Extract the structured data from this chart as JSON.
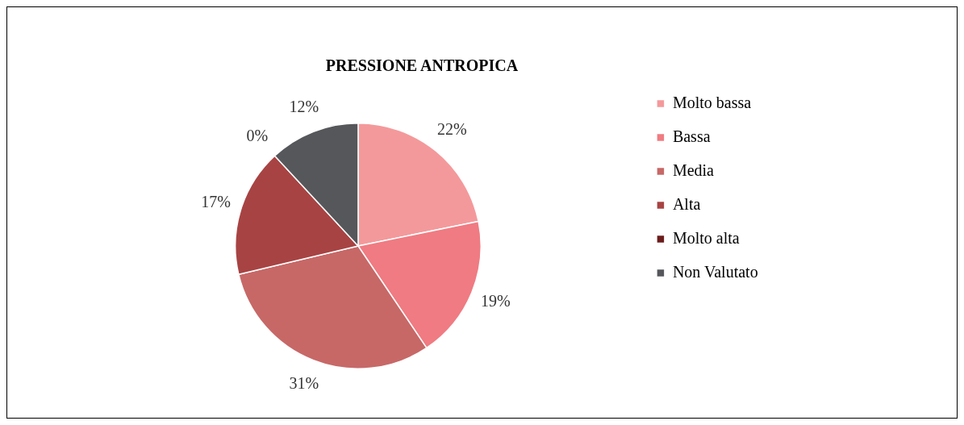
{
  "chart_data": {
    "type": "pie",
    "title": "PRESSIONE ANTROPICA",
    "categories": [
      "Molto bassa",
      "Bassa",
      "Media",
      "Alta",
      "Molto alta",
      "Non Valutato"
    ],
    "values": [
      22,
      19,
      31,
      17,
      0,
      12
    ],
    "value_labels": [
      "22%",
      "19%",
      "31%",
      "17%",
      "0%",
      "12%"
    ],
    "colors": [
      "#f4999b",
      "#f07b82",
      "#c76867",
      "#a84343",
      "#6b1c1c",
      "#55575b"
    ],
    "legend": "right"
  }
}
